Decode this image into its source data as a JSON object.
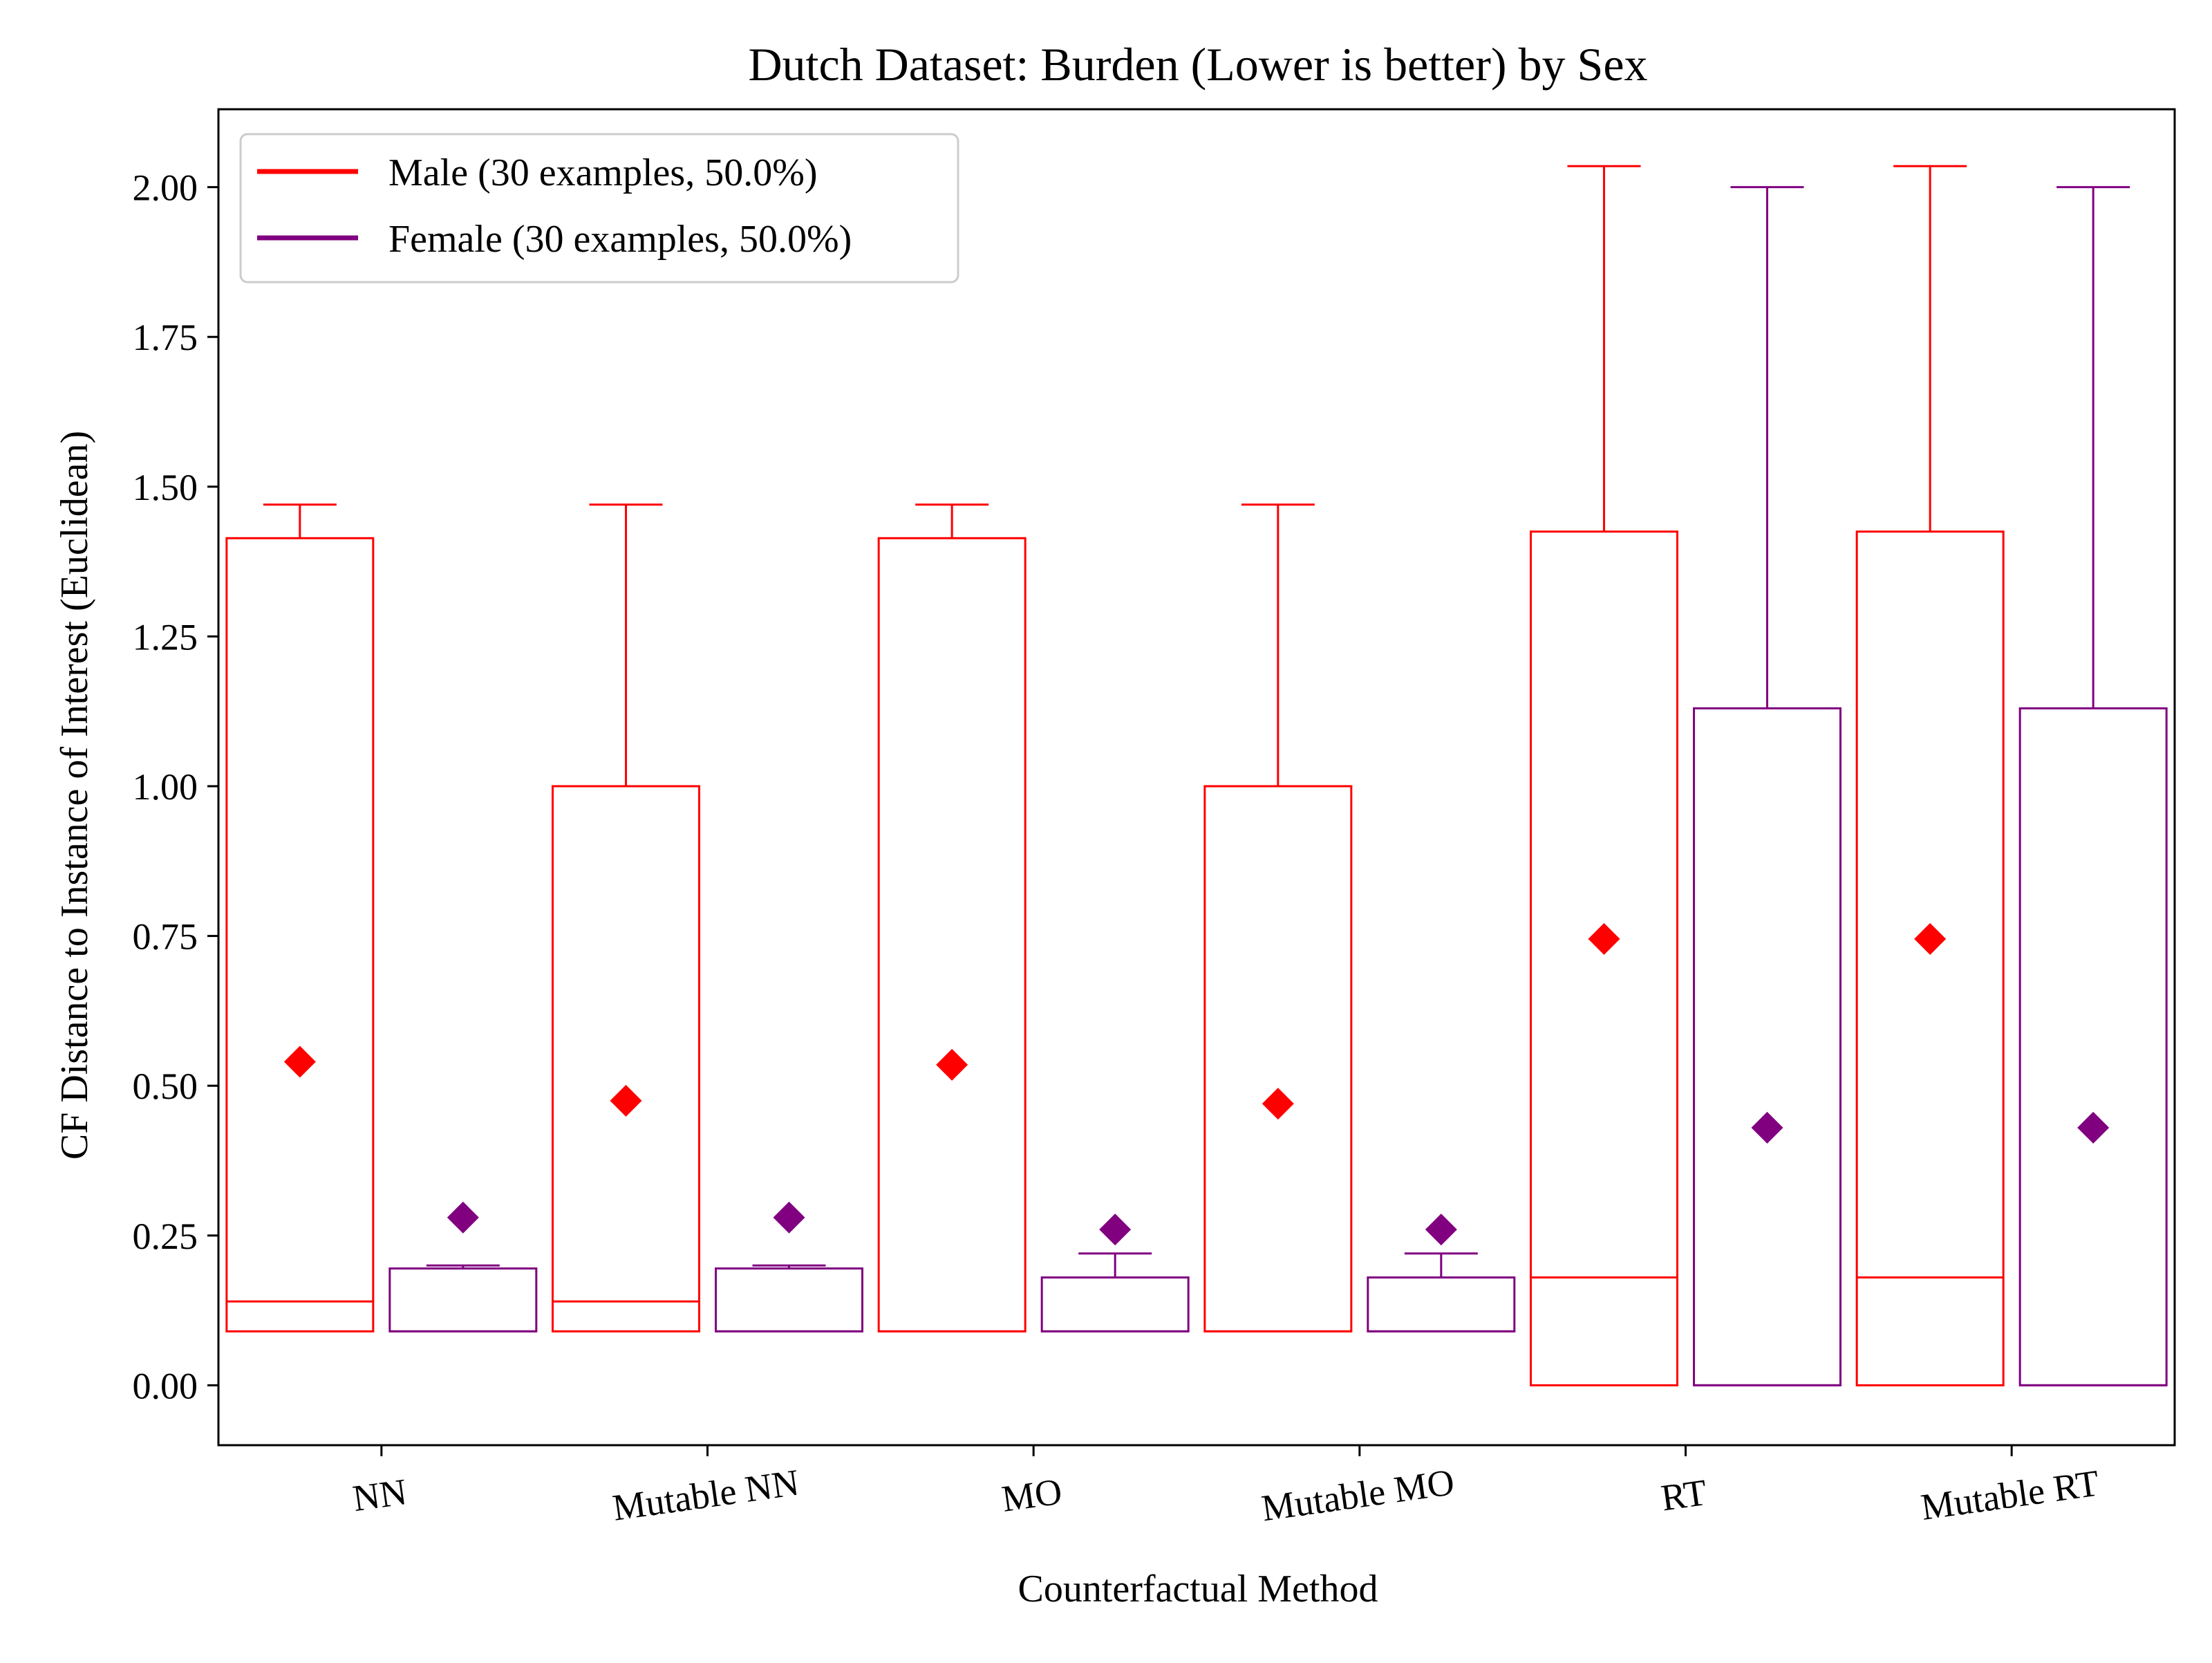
{
  "chart_data": {
    "type": "box",
    "title": "Dutch Dataset: Burden (Lower is better) by Sex",
    "xlabel": "Counterfactual Method",
    "ylabel": "CF Distance to Instance of Interest (Euclidean)",
    "ylim": [
      -0.1,
      2.13
    ],
    "yticks": [
      "0.00",
      "0.25",
      "0.50",
      "0.75",
      "1.00",
      "1.25",
      "1.50",
      "1.75",
      "2.00"
    ],
    "categories": [
      "NN",
      "Mutable NN",
      "MO",
      "Mutable MO",
      "RT",
      "Mutable RT"
    ],
    "legend": {
      "position": "top-left",
      "entries": [
        "Male (30 examples, 50.0%)",
        "Female (30 examples, 50.0%)"
      ]
    },
    "series": [
      {
        "name": "Male (30 examples, 50.0%)",
        "color": "#ff0000",
        "boxes": [
          {
            "whisker_low": 0.09,
            "q1": 0.09,
            "median": 0.14,
            "q3": 1.414,
            "whisker_high": 1.47,
            "mean": 0.54
          },
          {
            "whisker_low": 0.09,
            "q1": 0.09,
            "median": 0.14,
            "q3": 1.0,
            "whisker_high": 1.47,
            "mean": 0.475
          },
          {
            "whisker_low": 0.09,
            "q1": 0.09,
            "median": 0.09,
            "q3": 1.414,
            "whisker_high": 1.47,
            "mean": 0.535
          },
          {
            "whisker_low": 0.09,
            "q1": 0.09,
            "median": 0.09,
            "q3": 1.0,
            "whisker_high": 1.47,
            "mean": 0.47
          },
          {
            "whisker_low": 0.0,
            "q1": 0.0,
            "median": 0.18,
            "q3": 1.425,
            "whisker_high": 2.035,
            "mean": 0.745
          },
          {
            "whisker_low": 0.0,
            "q1": 0.0,
            "median": 0.18,
            "q3": 1.425,
            "whisker_high": 2.035,
            "mean": 0.745
          }
        ]
      },
      {
        "name": "Female (30 examples, 50.0%)",
        "color": "#800080",
        "boxes": [
          {
            "whisker_low": 0.09,
            "q1": 0.09,
            "median": 0.09,
            "q3": 0.195,
            "whisker_high": 0.2,
            "mean": 0.28
          },
          {
            "whisker_low": 0.09,
            "q1": 0.09,
            "median": 0.09,
            "q3": 0.195,
            "whisker_high": 0.2,
            "mean": 0.28
          },
          {
            "whisker_low": 0.09,
            "q1": 0.09,
            "median": 0.09,
            "q3": 0.18,
            "whisker_high": 0.22,
            "mean": 0.26
          },
          {
            "whisker_low": 0.09,
            "q1": 0.09,
            "median": 0.09,
            "q3": 0.18,
            "whisker_high": 0.22,
            "mean": 0.26
          },
          {
            "whisker_low": 0.0,
            "q1": 0.0,
            "median": 0.0,
            "q3": 1.13,
            "whisker_high": 2.0,
            "mean": 0.43
          },
          {
            "whisker_low": 0.0,
            "q1": 0.0,
            "median": 0.0,
            "q3": 1.13,
            "whisker_high": 2.0,
            "mean": 0.43
          }
        ]
      }
    ]
  }
}
